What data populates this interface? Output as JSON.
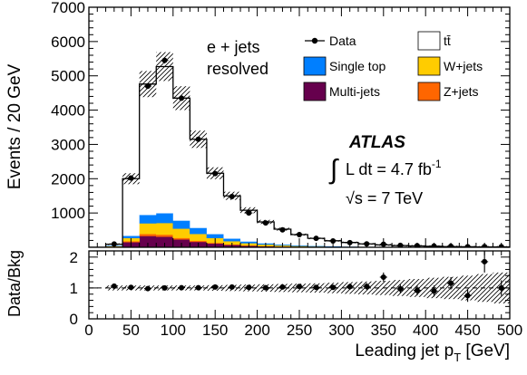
{
  "chart_data": [
    {
      "type": "bar",
      "panel": "main",
      "ylabel": "Events / 20 GeV",
      "ylim": [
        0,
        7000
      ],
      "xlim": [
        0,
        500
      ],
      "yticks": [
        1000,
        2000,
        3000,
        4000,
        5000,
        6000,
        7000
      ],
      "ytick_labels": [
        "1000",
        "2000",
        "3000",
        "4000",
        "5000",
        "6000",
        "7000"
      ],
      "bin_edges": [
        0,
        20,
        40,
        60,
        80,
        100,
        120,
        140,
        160,
        180,
        200,
        220,
        240,
        260,
        280,
        300,
        320,
        340,
        360,
        380,
        400,
        420,
        440,
        460,
        480,
        500
      ],
      "stack_series": [
        {
          "name": "Multi-jets",
          "color": "#66004d",
          "values": [
            0,
            20,
            150,
            330,
            310,
            230,
            160,
            110,
            70,
            45,
            30,
            20,
            14,
            9,
            6,
            4,
            3,
            2,
            2,
            1,
            1,
            1,
            1,
            0,
            0
          ]
        },
        {
          "name": "Z+jets",
          "color": "#ff6600",
          "values": [
            0,
            4,
            30,
            60,
            60,
            45,
            32,
            22,
            15,
            10,
            7,
            5,
            3,
            2,
            2,
            1,
            1,
            1,
            0,
            0,
            0,
            0,
            0,
            0,
            0
          ]
        },
        {
          "name": "W+jets",
          "color": "#ffcc00",
          "values": [
            0,
            12,
            90,
            310,
            340,
            270,
            200,
            140,
            95,
            65,
            45,
            32,
            22,
            15,
            11,
            8,
            6,
            4,
            3,
            2,
            2,
            1,
            1,
            1,
            1
          ]
        },
        {
          "name": "Single top",
          "color": "#007fff",
          "values": [
            0,
            8,
            60,
            240,
            280,
            230,
            170,
            110,
            70,
            45,
            30,
            20,
            14,
            10,
            7,
            5,
            4,
            3,
            2,
            2,
            1,
            1,
            1,
            1,
            0
          ]
        },
        {
          "name": "tt̄",
          "color": "#ffffff",
          "values": [
            0,
            46,
            1670,
            3820,
            4280,
            3575,
            2588,
            1778,
            1250,
            915,
            628,
            452,
            317,
            224,
            164,
            122,
            86,
            60,
            43,
            35,
            26,
            17,
            12,
            8,
            9
          ]
        }
      ],
      "data_series": {
        "name": "Data",
        "x": [
          30,
          50,
          70,
          90,
          110,
          130,
          150,
          170,
          190,
          210,
          230,
          250,
          270,
          290,
          310,
          330,
          350,
          370,
          390,
          410,
          430,
          450,
          470,
          490
        ],
        "y": [
          95,
          2020,
          4700,
          5450,
          4350,
          3150,
          2150,
          1480,
          1000,
          710,
          510,
          370,
          260,
          185,
          135,
          100,
          90,
          55,
          45,
          35,
          30,
          15,
          20,
          15
        ]
      },
      "legend": {
        "placement": "top-right",
        "entries": [
          {
            "label": "Data",
            "kind": "marker"
          },
          {
            "label": "tt̄",
            "kind": "box",
            "color": "#ffffff"
          },
          {
            "label": "Single top",
            "kind": "box",
            "color": "#007fff"
          },
          {
            "label": "W+jets",
            "kind": "box",
            "color": "#ffcc00"
          },
          {
            "label": "Multi-jets",
            "kind": "box",
            "color": "#66004d"
          },
          {
            "label": "Z+jets",
            "kind": "box",
            "color": "#ff6600"
          }
        ]
      },
      "annotations": {
        "channel_line1": "e + jets",
        "channel_line2": "resolved",
        "experiment": "ATLAS",
        "lumi_integral": "∫",
        "lumi_text": "L dt = 4.7 fb",
        "lumi_exp": "-1",
        "energy_text": "√s = 7 TeV"
      },
      "uncertainty_band": "hatched"
    },
    {
      "type": "scatter",
      "panel": "ratio",
      "ylabel": "Data/Bkg",
      "xlabel": "Leading jet p",
      "xlabel_sub": "T",
      "xlabel_unit": " [GeV]",
      "ylim": [
        0,
        2.2
      ],
      "yticks": [
        0,
        1,
        2
      ],
      "ytick_labels": [
        "0",
        "1",
        "2"
      ],
      "xticks": [
        0,
        50,
        100,
        150,
        200,
        250,
        300,
        350,
        400,
        450,
        500
      ],
      "xtick_labels": [
        "0",
        "50",
        "100",
        "150",
        "200",
        "250",
        "300",
        "350",
        "400",
        "450",
        "500"
      ],
      "reference_line": 1,
      "x": [
        30,
        50,
        70,
        90,
        110,
        130,
        150,
        170,
        190,
        210,
        230,
        250,
        270,
        290,
        310,
        330,
        350,
        370,
        390,
        410,
        430,
        450,
        470,
        490
      ],
      "y": [
        1.06,
        1.02,
        0.98,
        1.0,
        1.01,
        1.01,
        1.03,
        1.03,
        1.02,
        1.01,
        1.03,
        1.05,
        1.02,
        1.02,
        1.04,
        1.05,
        1.35,
        0.97,
        0.92,
        0.9,
        1.15,
        0.75,
        1.85,
        1.0
      ],
      "yerr": [
        0.05,
        0.03,
        0.02,
        0.02,
        0.02,
        0.02,
        0.03,
        0.03,
        0.04,
        0.05,
        0.05,
        0.06,
        0.07,
        0.08,
        0.1,
        0.11,
        0.15,
        0.14,
        0.16,
        0.18,
        0.2,
        0.2,
        0.35,
        0.25
      ],
      "band_halfwidth": [
        0.08,
        0.08,
        0.08,
        0.08,
        0.08,
        0.08,
        0.09,
        0.1,
        0.11,
        0.12,
        0.13,
        0.14,
        0.15,
        0.17,
        0.19,
        0.21,
        0.23,
        0.26,
        0.29,
        0.33,
        0.36,
        0.4,
        0.45,
        0.5
      ]
    }
  ]
}
